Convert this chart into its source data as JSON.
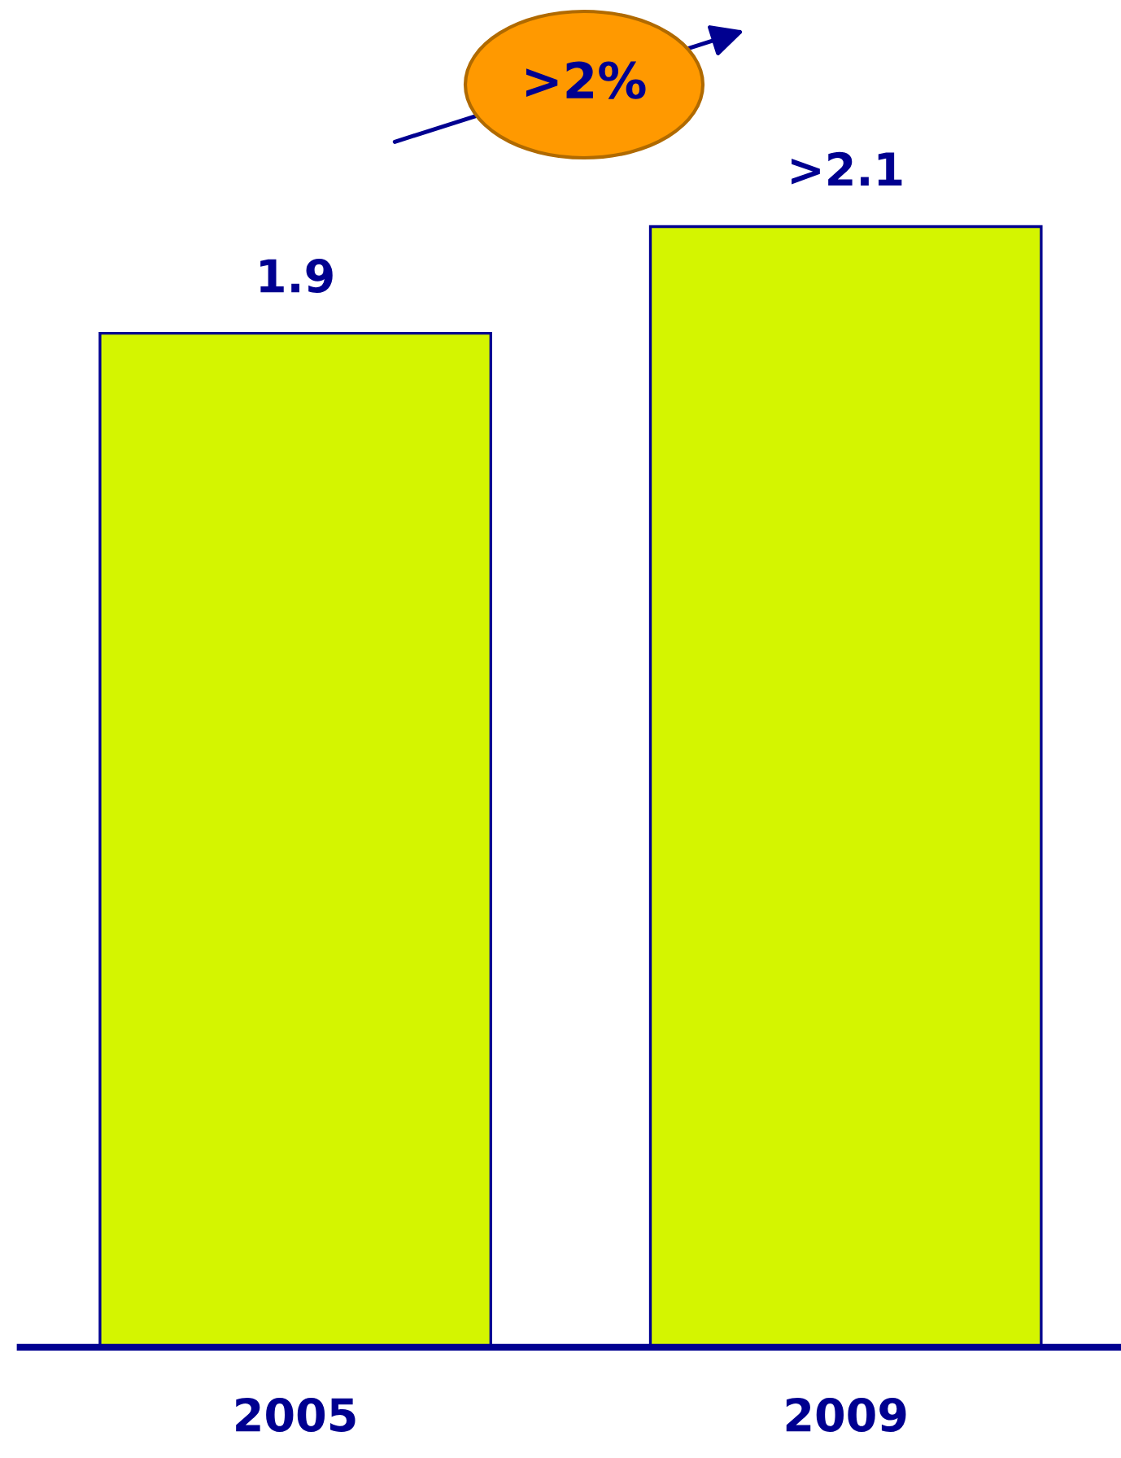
{
  "chart_data": {
    "type": "bar",
    "categories": [
      "2005",
      "2009"
    ],
    "values": [
      1.9,
      2.1
    ],
    "value_labels": [
      "1.9",
      ">2.1"
    ],
    "color": "#d4f500",
    "annotations": [
      ">2%"
    ]
  }
}
